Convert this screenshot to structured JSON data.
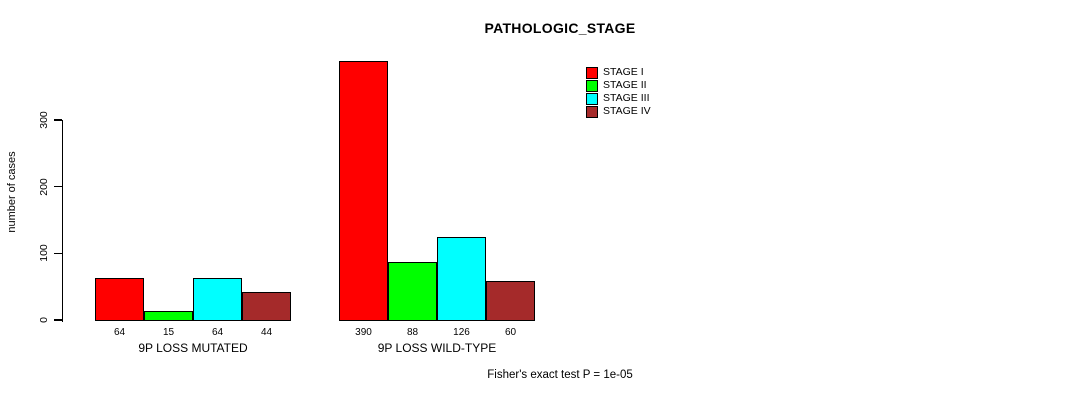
{
  "chart_data": {
    "type": "bar",
    "title": "PATHOLOGIC_STAGE",
    "ylabel": "number of cases",
    "xlabel": "",
    "yticks": [
      0,
      100,
      200,
      300
    ],
    "ylim": [
      0,
      410
    ],
    "grid": false,
    "legend_position": "top-right",
    "bar_value_labels": true,
    "categories": [
      "9P LOSS MUTATED",
      "9P LOSS WILD-TYPE"
    ],
    "series": [
      {
        "name": "STAGE I",
        "color": "#ff0000",
        "values": [
          64,
          390
        ]
      },
      {
        "name": "STAGE II",
        "color": "#00ff00",
        "values": [
          15,
          88
        ]
      },
      {
        "name": "STAGE III",
        "color": "#00ffff",
        "values": [
          64,
          126
        ]
      },
      {
        "name": "STAGE IV",
        "color": "#a52a2a",
        "values": [
          44,
          60
        ]
      }
    ],
    "footnote": "Fisher's exact test P = 1e-05"
  },
  "colors": {
    "background": "#ffffff",
    "axis": "#000000",
    "text": "#000000"
  }
}
